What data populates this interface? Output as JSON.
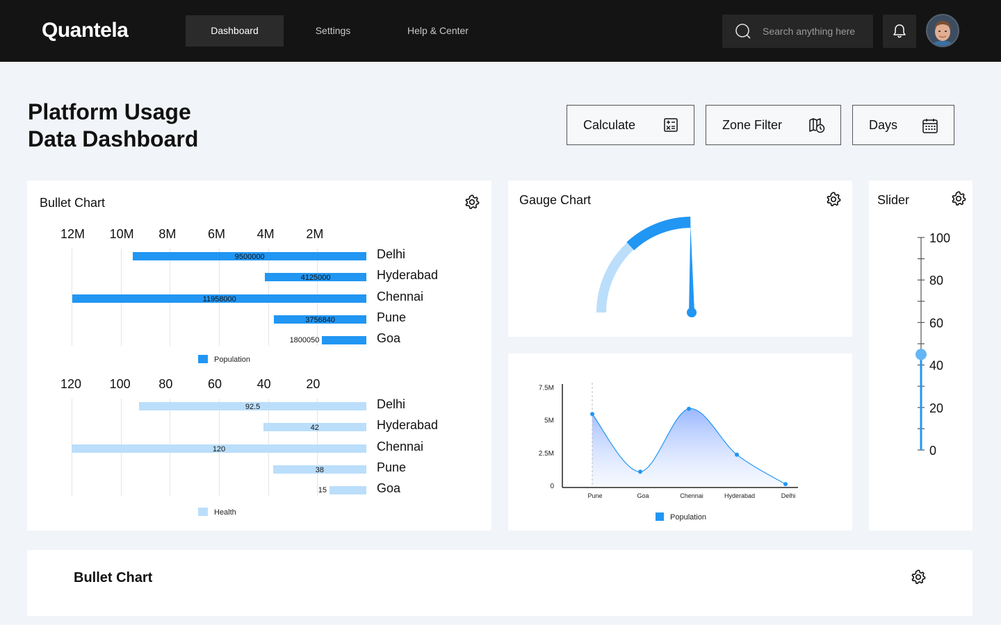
{
  "app": {
    "logo": "Quantela"
  },
  "nav": {
    "items": [
      {
        "label": "Dashboard",
        "active": true
      },
      {
        "label": "Settings",
        "active": false
      },
      {
        "label": "Help & Center",
        "active": false
      }
    ],
    "search_placeholder": "Search anything here"
  },
  "header": {
    "title_line1": "Platform Usage",
    "title_line2": "Data Dashboard",
    "buttons": {
      "calculate": "Calculate",
      "zone_filter": "Zone Filter",
      "days": "Days"
    }
  },
  "bullet_card": {
    "title": "Bullet Chart"
  },
  "gauge_card": {
    "title": "Gauge Chart"
  },
  "slider_card": {
    "title": "Slider"
  },
  "bottom_card": {
    "title": "Bullet Chart"
  },
  "colors": {
    "accent": "#2196f3",
    "accent_light": "#bbdefb",
    "nav_bg": "#141414",
    "page_bg": "#f1f4f8"
  },
  "chart_data": [
    {
      "type": "bar",
      "title": "Bullet Chart",
      "orientation": "horizontal-reversed",
      "categories": [
        "Delhi",
        "Hyderabad",
        "Chennai",
        "Pune",
        "Goa"
      ],
      "series": [
        {
          "name": "Population",
          "values": [
            9500000,
            4125000,
            11958000,
            3756840,
            1800050
          ]
        }
      ],
      "value_labels": [
        "9500000",
        "4125000",
        "11958000",
        "3756840",
        "1800050"
      ],
      "ticks": [
        12000000,
        10000000,
        8000000,
        6000000,
        4000000,
        2000000
      ],
      "tick_labels": [
        "12M",
        "10M",
        "8M",
        "6M",
        "4M",
        "2M"
      ],
      "xlim": [
        0,
        12000000
      ],
      "legend": "bottom"
    },
    {
      "type": "bar",
      "orientation": "horizontal-reversed",
      "categories": [
        "Delhi",
        "Hyderabad",
        "Chennai",
        "Pune",
        "Goa"
      ],
      "series": [
        {
          "name": "Health",
          "values": [
            92.5,
            42,
            120,
            38,
            15
          ]
        }
      ],
      "value_labels": [
        "92.5",
        "42",
        "120",
        "38",
        "15"
      ],
      "ticks": [
        120,
        100,
        80,
        60,
        40,
        20
      ],
      "tick_labels": [
        "120",
        "100",
        "80",
        "60",
        "40",
        "20"
      ],
      "xlim": [
        0,
        120
      ],
      "legend": "bottom"
    },
    {
      "type": "gauge",
      "title": "Gauge Chart",
      "min": 0,
      "max": 100,
      "value": 85,
      "bands": [
        {
          "from": 0,
          "to": 45,
          "color": "#bbdefb"
        },
        {
          "from": 45,
          "to": 85,
          "color": "#2196f3"
        }
      ]
    },
    {
      "type": "area",
      "categories": [
        "Pune",
        "Goa",
        "Chennai",
        "Hyderabad",
        "Delhi"
      ],
      "series": [
        {
          "name": "Population",
          "values": [
            5500000,
            1100000,
            5900000,
            2400000,
            150000
          ]
        }
      ],
      "ylim": [
        0,
        8000000
      ],
      "y_ticks": [
        0,
        2500000,
        5000000,
        7500000
      ],
      "y_tick_labels": [
        "0",
        "2.5M",
        "5M",
        "7.5M"
      ],
      "legend": "bottom"
    },
    {
      "type": "slider",
      "title": "Slider",
      "min": 0,
      "max": 100,
      "value": 45,
      "tick_labels": [
        "100",
        "80",
        "60",
        "40",
        "20",
        "0"
      ]
    }
  ]
}
